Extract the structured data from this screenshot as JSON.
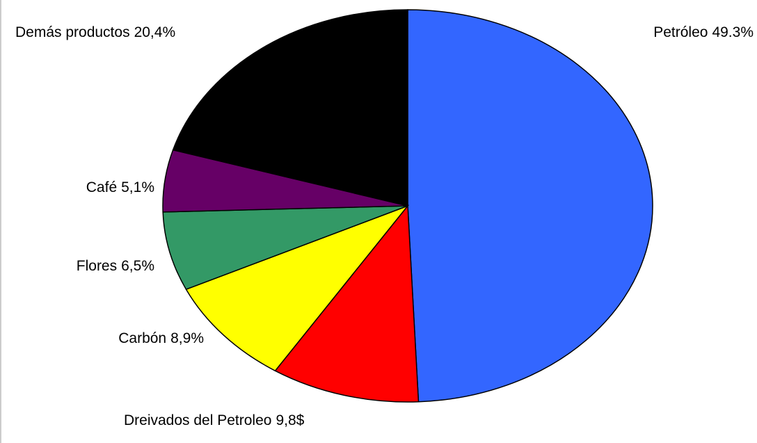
{
  "chart_data": {
    "type": "pie",
    "categories": [
      "Petróleo",
      "Dreivados del Petroleo",
      "Carbón",
      "Flores",
      "Café",
      "Demás productos"
    ],
    "values": [
      49.3,
      9.8,
      8.9,
      6.5,
      5.1,
      20.4
    ],
    "value_labels": [
      "49.3%",
      "9,8$",
      "8,9%",
      "6,5%",
      "5,1%",
      "20,4%"
    ],
    "colors": [
      "#3366ff",
      "#ff0000",
      "#ffff00",
      "#339966",
      "#660066",
      "#000000"
    ]
  }
}
